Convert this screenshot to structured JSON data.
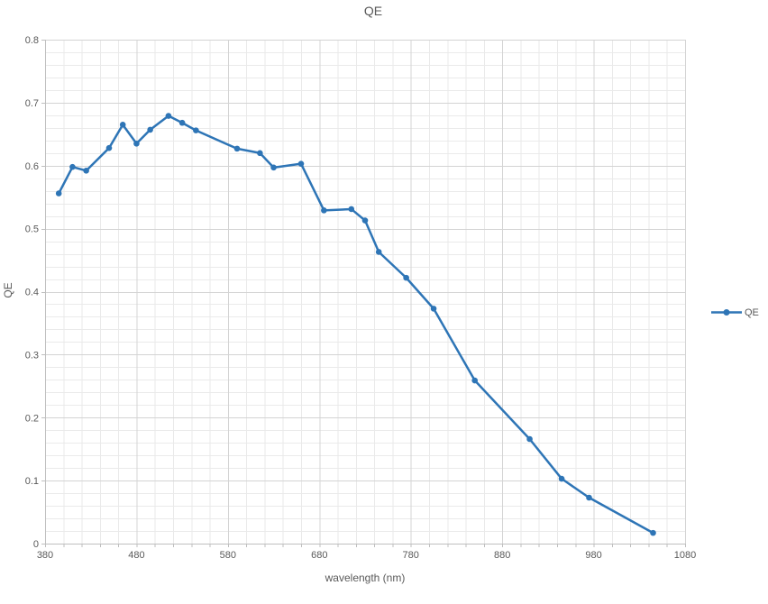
{
  "chart_data": {
    "type": "line",
    "title": "QE",
    "xlabel": "wavelength (nm)",
    "ylabel": "QE",
    "xlim": [
      380,
      1080
    ],
    "ylim": [
      0,
      0.8
    ],
    "x_major_step": 100,
    "x_minor_step": 20,
    "y_major_step": 0.1,
    "y_minor_step": 0.02,
    "x_major_ticks": [
      380,
      480,
      580,
      680,
      780,
      880,
      980,
      1080
    ],
    "y_major_ticks": [
      0,
      0.1,
      0.2,
      0.3,
      0.4,
      0.5,
      0.6,
      0.7,
      0.8
    ],
    "grid": "major+minor",
    "legend_position": "right",
    "series": [
      {
        "name": "QE",
        "color": "#2E75B6",
        "marker": "circle",
        "x": [
          395,
          410,
          425,
          450,
          465,
          480,
          495,
          515,
          530,
          545,
          590,
          615,
          630,
          660,
          685,
          715,
          730,
          745,
          775,
          805,
          850,
          910,
          945,
          975,
          1045
        ],
        "y": [
          0.556,
          0.598,
          0.592,
          0.628,
          0.665,
          0.635,
          0.657,
          0.679,
          0.668,
          0.656,
          0.627,
          0.62,
          0.597,
          0.603,
          0.529,
          0.531,
          0.513,
          0.463,
          0.422,
          0.373,
          0.259,
          0.166,
          0.103,
          0.073,
          0.017
        ]
      }
    ],
    "colors": {
      "axis": "#BFBFBF",
      "major_grid": "#D4D4D4",
      "minor_grid": "#EAEAEA",
      "text": "#595959",
      "background": "#FFFFFF"
    }
  }
}
